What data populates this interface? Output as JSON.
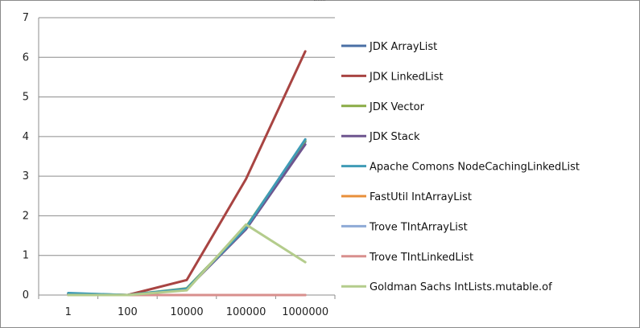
{
  "chart_data": {
    "type": "line",
    "title": "",
    "xlabel": "",
    "ylabel": "",
    "categories": [
      "1",
      "100",
      "10000",
      "100000",
      "1000000"
    ],
    "ylim": [
      0,
      7
    ],
    "yticks": [
      "0",
      "1",
      "2",
      "3",
      "4",
      "5",
      "6",
      "7"
    ],
    "grid": "horizontal",
    "legend_position": "right",
    "series": [
      {
        "name": "JDK ArrayList",
        "color": "#4a6fa5",
        "values": [
          0.03,
          0.0,
          0.15,
          1.68,
          3.87
        ]
      },
      {
        "name": "JDK LinkedList",
        "color": "#a84442",
        "values": [
          0.02,
          0.0,
          0.38,
          2.93,
          6.15
        ]
      },
      {
        "name": "JDK Vector",
        "color": "#8aac46",
        "values": [
          0.04,
          0.0,
          0.17,
          1.72,
          3.9
        ]
      },
      {
        "name": "JDK Stack",
        "color": "#6e558f",
        "values": [
          0.03,
          0.0,
          0.15,
          1.66,
          3.8
        ]
      },
      {
        "name": "Apache Comons NodeCachingLinkedList",
        "color": "#3f9bb6",
        "values": [
          0.05,
          0.0,
          0.16,
          1.7,
          3.93
        ]
      },
      {
        "name": "FastUtil IntArrayList",
        "color": "#e88f3a",
        "values": [
          0.0,
          0.0,
          0.0,
          0.0,
          0.0
        ]
      },
      {
        "name": "Trove TIntArrayList",
        "color": "#8eaad6",
        "values": [
          0.0,
          0.0,
          0.0,
          0.0,
          0.0
        ]
      },
      {
        "name": "Trove TIntLinkedList",
        "color": "#d88f8d",
        "values": [
          0.0,
          0.0,
          0.0,
          0.0,
          0.0
        ]
      },
      {
        "name": "Goldman Sachs IntLists.mutable.of",
        "color": "#b4cc8c",
        "values": [
          0.0,
          0.0,
          0.12,
          1.78,
          0.83
        ]
      }
    ]
  }
}
